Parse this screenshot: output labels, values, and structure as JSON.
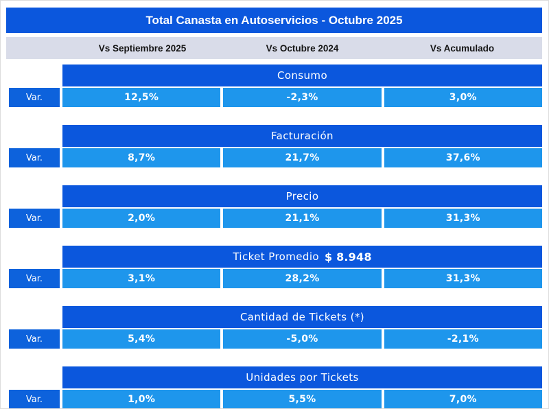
{
  "title": "Total Canasta en Autoservicios - Octubre 2025",
  "columns": [
    "Vs Septiembre 2025",
    "Vs Octubre 2024",
    "Vs Acumulado"
  ],
  "row_label": "Var.",
  "colors": {
    "header_blue": "#0b57dd",
    "var_cell_blue": "#0d62dc",
    "value_cell_blue": "#1e96ec",
    "column_header_bg": "#d9dce9",
    "text_on_blue": "#ffffff"
  },
  "sections": [
    {
      "name": "Consumo",
      "amount": "",
      "values": [
        "12,5%",
        "-2,3%",
        "3,0%"
      ]
    },
    {
      "name": "Facturación",
      "amount": "",
      "values": [
        "8,7%",
        "21,7%",
        "37,6%"
      ]
    },
    {
      "name": "Precio",
      "amount": "",
      "values": [
        "2,0%",
        "21,1%",
        "31,3%"
      ]
    },
    {
      "name": "Ticket Promedio",
      "amount": "$ 8.948",
      "values": [
        "3,1%",
        "28,2%",
        "31,3%"
      ]
    },
    {
      "name": "Cantidad de Tickets (*)",
      "amount": "",
      "values": [
        "5,4%",
        "-5,0%",
        "-2,1%"
      ]
    },
    {
      "name": "Unidades por Tickets",
      "amount": "",
      "values": [
        "1,0%",
        "5,5%",
        "7,0%"
      ]
    }
  ],
  "chart_data": {
    "type": "table",
    "title": "Total Canasta en Autoservicios - Octubre 2025",
    "row_header": "Var.",
    "columns": [
      "Vs Septiembre 2025",
      "Vs Octubre 2024",
      "Vs Acumulado"
    ],
    "rows": [
      {
        "metric": "Consumo",
        "values_pct": [
          12.5,
          -2.3,
          3.0
        ]
      },
      {
        "metric": "Facturación",
        "values_pct": [
          8.7,
          21.7,
          37.6
        ]
      },
      {
        "metric": "Precio",
        "values_pct": [
          2.0,
          21.1,
          31.3
        ]
      },
      {
        "metric": "Ticket Promedio",
        "amount": "$ 8.948",
        "values_pct": [
          3.1,
          28.2,
          31.3
        ]
      },
      {
        "metric": "Cantidad de Tickets (*)",
        "values_pct": [
          5.4,
          -5.0,
          -2.1
        ]
      },
      {
        "metric": "Unidades por Tickets",
        "values_pct": [
          1.0,
          5.5,
          7.0
        ]
      }
    ]
  }
}
